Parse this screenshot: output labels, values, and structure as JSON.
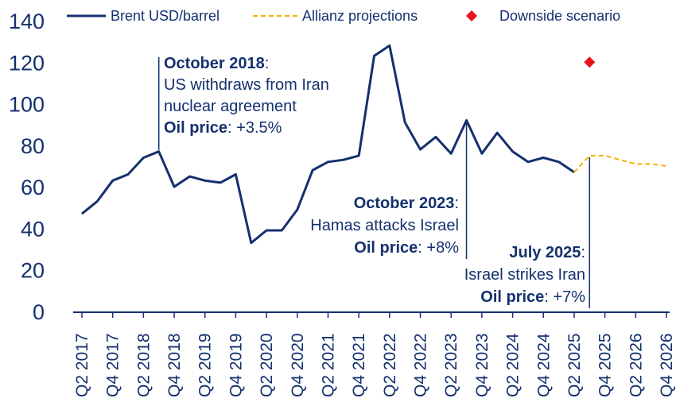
{
  "chart_data": {
    "type": "line",
    "title": "",
    "xlabel": "",
    "ylabel": "",
    "ylim": [
      0,
      140
    ],
    "yticks": [
      "0",
      "20",
      "40",
      "60",
      "80",
      "100",
      "120",
      "140"
    ],
    "x_tick_labels": [
      "Q2 2017",
      "Q4 2017",
      "Q2 2018",
      "Q4 2018",
      "Q2 2019",
      "Q4 2019",
      "Q2 2020",
      "Q4 2020",
      "Q2 2021",
      "Q4 2021",
      "Q2 2022",
      "Q4 2022",
      "Q2 2023",
      "Q4 2023",
      "Q2 2024",
      "Q4 2024",
      "Q2 2025",
      "Q4 2025",
      "Q2 2026",
      "Q4 2026"
    ],
    "legend_position": "top",
    "grid": false,
    "series": [
      {
        "name": "Brent USD/barrel",
        "color": "#14306e",
        "style": "solid",
        "points": [
          [
            "Q2 2017",
            47
          ],
          [
            "Q3 2017",
            53
          ],
          [
            "Q4 2017",
            63
          ],
          [
            "Q1 2018",
            66
          ],
          [
            "Q2 2018",
            74
          ],
          [
            "Q3 2018",
            77
          ],
          [
            "Q4 2018",
            60
          ],
          [
            "Q1 2019",
            65
          ],
          [
            "Q2 2019",
            63
          ],
          [
            "Q3 2019",
            62
          ],
          [
            "Q4 2019",
            66
          ],
          [
            "Q1 2020",
            33
          ],
          [
            "Q2 2020",
            39
          ],
          [
            "Q3 2020",
            39
          ],
          [
            "Q4 2020",
            49
          ],
          [
            "Q1 2021",
            68
          ],
          [
            "Q2 2021",
            72
          ],
          [
            "Q3 2021",
            73
          ],
          [
            "Q4 2021",
            75
          ],
          [
            "Q1 2022",
            123
          ],
          [
            "Q2 2022",
            128
          ],
          [
            "Q3 2022",
            91
          ],
          [
            "Q4 2022",
            78
          ],
          [
            "Q1 2023",
            84
          ],
          [
            "Q2 2023",
            76
          ],
          [
            "Q3 2023",
            92
          ],
          [
            "Q4 2023",
            76
          ],
          [
            "Q1 2024",
            86
          ],
          [
            "Q2 2024",
            77
          ],
          [
            "Q3 2024",
            72
          ],
          [
            "Q4 2024",
            74
          ],
          [
            "Q1 2025",
            72
          ],
          [
            "Q2 2025",
            67
          ]
        ]
      },
      {
        "name": "Allianz projections",
        "color": "#f5b000",
        "style": "dashed",
        "points": [
          [
            "Q2 2025",
            67
          ],
          [
            "Q3 2025",
            75
          ],
          [
            "Q4 2025",
            75
          ],
          [
            "Q1 2026",
            73
          ],
          [
            "Q2 2026",
            71
          ],
          [
            "Q3 2026",
            71
          ],
          [
            "Q4 2026",
            70
          ]
        ]
      },
      {
        "name": "Downside scenario",
        "color": "#e8141e",
        "style": "diamond-marker",
        "points": [
          [
            "Q3 2025",
            120
          ]
        ]
      }
    ],
    "annotations": [
      {
        "x": "Q3 2018",
        "value": 77,
        "lines": [
          {
            "bold": "October 2018",
            "text": ":"
          },
          {
            "bold": "",
            "text": "US withdraws from Iran"
          },
          {
            "bold": "",
            "text": "nuclear agreement"
          },
          {
            "bold": "Oil price",
            "text": ": +3.5%"
          }
        ]
      },
      {
        "x": "Q3 2023",
        "value": 92,
        "lines": [
          {
            "bold": "October 2023",
            "text": ":"
          },
          {
            "bold": "",
            "text": "Hamas attacks Israel"
          },
          {
            "bold": "Oil price",
            "text": ": +8%"
          }
        ]
      },
      {
        "x": "Q3 2025",
        "value": 75,
        "lines": [
          {
            "bold": "July 2025",
            "text": ":"
          },
          {
            "bold": "",
            "text": "Israel strikes Iran"
          },
          {
            "bold": "Oil price",
            "text": ": +7%"
          }
        ]
      }
    ]
  }
}
